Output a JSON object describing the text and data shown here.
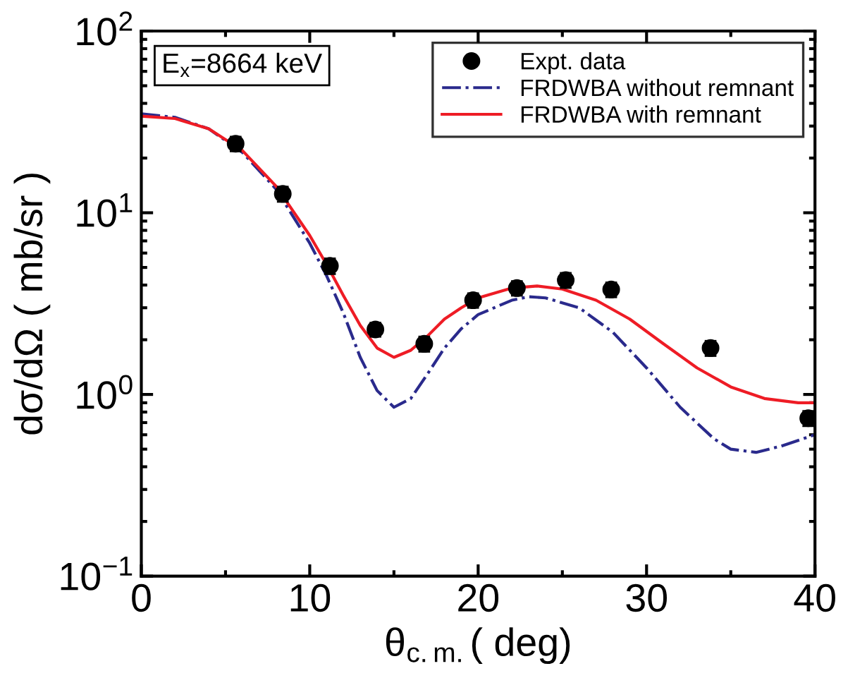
{
  "chart_data": {
    "type": "scatter",
    "xlabel": "θ$_{c.m.}$( deg)",
    "ylabel": "dσ/dΩ ( mb/sr )",
    "annotations": [
      "E$_{x}$=8664 keV"
    ],
    "xlim": [
      0,
      40
    ],
    "xticks": [
      0,
      10,
      20,
      30,
      40
    ],
    "ylim": [
      0.1,
      100
    ],
    "yticks": [
      {
        "value": 0.1,
        "label": "10$^{−1}$"
      },
      {
        "value": 1,
        "label": "10$^{0}$"
      },
      {
        "value": 10,
        "label": "10$^{1}$"
      },
      {
        "value": 100,
        "label": "10$^{2}$"
      }
    ],
    "log": "y",
    "grid": false,
    "legend": "top right",
    "series": [
      {
        "name": "Expt. data",
        "color": "#000000",
        "marker": "circle",
        "x": [
          5.6,
          8.4,
          11.2,
          13.9,
          16.8,
          19.7,
          22.3,
          25.2,
          27.9,
          33.8,
          39.6
        ],
        "values": [
          24,
          12.7,
          5.1,
          2.28,
          1.9,
          3.3,
          3.85,
          4.26,
          3.78,
          1.8,
          0.74
        ],
        "errors": [
          2.2,
          1.2,
          0.5,
          0.2,
          0.18,
          0.3,
          0.35,
          0.4,
          0.35,
          0.17,
          0.07
        ]
      },
      {
        "name": "FRDWBA without remnant",
        "type": "line",
        "color": "#2a2a8c",
        "line_style": "dashdot",
        "x": [
          0,
          2,
          4,
          6,
          8,
          10,
          11,
          12,
          13,
          14,
          15,
          16,
          17,
          18,
          19,
          20,
          22,
          23,
          24,
          26,
          28,
          30,
          32,
          34,
          35,
          36.5,
          38,
          40
        ],
        "values": [
          35,
          33.5,
          29,
          21.5,
          13.5,
          6.8,
          4.5,
          2.8,
          1.6,
          1.05,
          0.85,
          0.95,
          1.3,
          1.8,
          2.3,
          2.75,
          3.3,
          3.45,
          3.4,
          3.0,
          2.2,
          1.4,
          0.85,
          0.57,
          0.5,
          0.48,
          0.52,
          0.6
        ]
      },
      {
        "name": "FRDWBA with remnant",
        "type": "line",
        "color": "#ee1c25",
        "line_style": "solid",
        "x": [
          0,
          2,
          4,
          6,
          8,
          10,
          11,
          12,
          13,
          14,
          15,
          16,
          17,
          18,
          19,
          20,
          22,
          23.5,
          25,
          27,
          29,
          31,
          33,
          35,
          37,
          39,
          40
        ],
        "values": [
          34,
          33,
          29,
          22,
          14,
          7.5,
          5.2,
          3.5,
          2.4,
          1.8,
          1.6,
          1.75,
          2.1,
          2.6,
          3.0,
          3.4,
          3.85,
          3.95,
          3.8,
          3.3,
          2.6,
          1.9,
          1.4,
          1.1,
          0.95,
          0.9,
          0.9
        ]
      }
    ]
  }
}
